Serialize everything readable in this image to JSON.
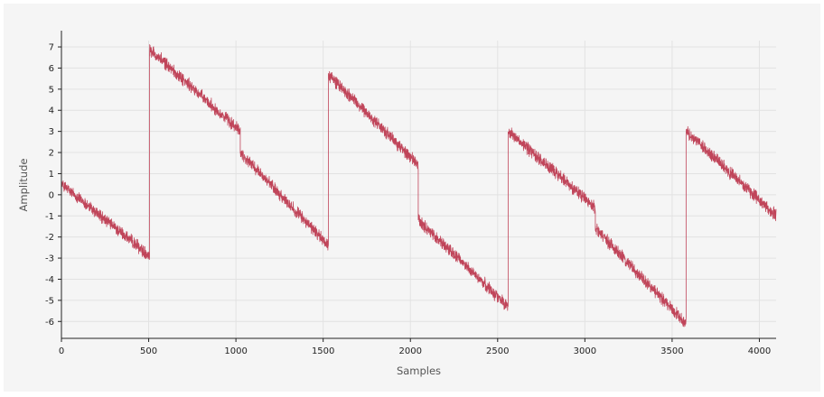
{
  "chart_data": {
    "type": "line",
    "title": "",
    "xlabel": "Samples",
    "ylabel": "Amplitude",
    "xlim": [
      0,
      4096
    ],
    "ylim": [
      -6.8,
      7.3
    ],
    "x_ticks": [
      0,
      500,
      1000,
      1500,
      2000,
      2500,
      3000,
      3500,
      4000
    ],
    "y_ticks": [
      7,
      6,
      5,
      4,
      3,
      2,
      1,
      0,
      -1,
      -2,
      -3,
      -4,
      -5,
      -6
    ],
    "grid": true,
    "legend": "none",
    "n_samples": 4096,
    "noise_amplitude": 0.35,
    "series": [
      {
        "color": "#c0455a",
        "segments": [
          {
            "x_start": 0,
            "x_end": 505,
            "y_start": 0.5,
            "y_end": -2.9
          },
          {
            "x_start": 505,
            "x_end": 1025,
            "y_start": 6.9,
            "y_end": 3.0
          },
          {
            "x_start": 1025,
            "x_end": 1530,
            "y_start": 2.0,
            "y_end": -2.4
          },
          {
            "x_start": 1530,
            "x_end": 2045,
            "y_start": 5.7,
            "y_end": 1.4
          },
          {
            "x_start": 2045,
            "x_end": 2560,
            "y_start": -1.2,
            "y_end": -5.3
          },
          {
            "x_start": 2560,
            "x_end": 3060,
            "y_start": 3.0,
            "y_end": -0.6
          },
          {
            "x_start": 3060,
            "x_end": 3580,
            "y_start": -1.6,
            "y_end": -6.1
          },
          {
            "x_start": 3580,
            "x_end": 4096,
            "y_start": 3.0,
            "y_end": -1.0
          }
        ]
      }
    ]
  },
  "colors": {
    "background": "#f5f5f5",
    "grid": "#e2e2e2",
    "axis": "#222222",
    "line": "#c0455a"
  }
}
